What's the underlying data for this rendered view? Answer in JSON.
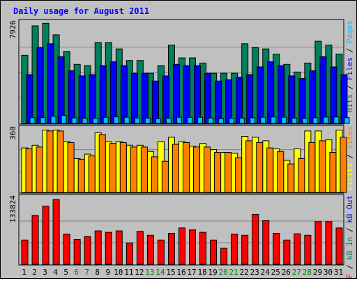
{
  "chart_data": {
    "type": "bar",
    "title": "Daily usage for August 2011",
    "categories": [
      "1",
      "2",
      "3",
      "4",
      "5",
      "6",
      "7",
      "8",
      "9",
      "10",
      "11",
      "12",
      "13",
      "14",
      "15",
      "16",
      "17",
      "18",
      "19",
      "20",
      "21",
      "22",
      "23",
      "24",
      "25",
      "26",
      "27",
      "28",
      "29",
      "30",
      "31"
    ],
    "weekend_days": [
      "6",
      "7",
      "13",
      "14",
      "20",
      "21",
      "27",
      "28"
    ],
    "colors": {
      "hits": "#00805c",
      "files": "#0000ff",
      "pages": "#00c0ff",
      "visits": "#ffff00",
      "sites": "#ff8000",
      "kbytes": "#ff0000",
      "title": "#0000ff",
      "weekday_label": "#000000",
      "weekend_label": "#008000",
      "grid": "#808080",
      "panel": "#c0c0c0"
    },
    "panels": [
      {
        "id": "hits-files-pages",
        "ymax_label": "7926",
        "ymax": 7926,
        "legend": [
          {
            "text": "Hits",
            "color": "#00805c"
          },
          {
            "text": " / ",
            "color": "#000000"
          },
          {
            "text": "Files",
            "color": "#0000ff"
          },
          {
            "text": " / ",
            "color": "#000000"
          },
          {
            "text": "Pages",
            "color": "#00c0ff"
          }
        ],
        "series": [
          {
            "name": "Hits",
            "color": "#00805c",
            "values": [
              5300,
              7600,
              7800,
              6900,
              5600,
              4600,
              4500,
              6300,
              6300,
              5800,
              4900,
              4900,
              3900,
              4500,
              6100,
              5100,
              5100,
              4700,
              3900,
              3900,
              3900,
              6200,
              5900,
              5800,
              5400,
              4600,
              4000,
              4700,
              6400,
              6100,
              5400
            ]
          },
          {
            "name": "Files",
            "color": "#0000ff",
            "values": [
              3800,
              5900,
              6200,
              5200,
              4100,
              3700,
              3800,
              4500,
              4800,
              4500,
              3900,
              3900,
              3300,
              3700,
              4600,
              4500,
              4500,
              3900,
              3300,
              3400,
              3600,
              3800,
              4400,
              4800,
              4500,
              3700,
              3500,
              4100,
              5200,
              4400,
              3800
            ]
          },
          {
            "name": "Pages",
            "color": "#00c0ff",
            "values": [
              450,
              450,
              550,
              620,
              430,
              400,
              400,
              470,
              510,
              480,
              420,
              420,
              370,
              400,
              480,
              470,
              470,
              420,
              370,
              390,
              410,
              440,
              480,
              500,
              480,
              410,
              390,
              440,
              490,
              500,
              450
            ]
          }
        ]
      },
      {
        "id": "visits-sites",
        "ymax_label": "360",
        "ymax": 360,
        "legend": [
          {
            "text": "Visits",
            "color": "#ffff00"
          },
          {
            "text": " / ",
            "color": "#000000"
          },
          {
            "text": "Sites",
            "color": "#ff8000"
          }
        ],
        "series": [
          {
            "name": "Visits",
            "color": "#ffff00",
            "values": [
              250,
              265,
              350,
              350,
              285,
              190,
              215,
              335,
              285,
              285,
              265,
              265,
              230,
              285,
              310,
              285,
              260,
              275,
              240,
              225,
              220,
              315,
              310,
              290,
              245,
              180,
              245,
              345,
              345,
              295,
              350
            ]
          },
          {
            "name": "Sites",
            "color": "#ff8000",
            "values": [
              245,
              255,
              345,
              345,
              280,
              185,
              205,
              325,
              275,
              280,
              255,
              255,
              200,
              175,
              270,
              280,
              255,
              255,
              225,
              225,
              195,
              290,
              280,
              250,
              230,
              160,
              190,
              280,
              290,
              225,
              310
            ]
          }
        ]
      },
      {
        "id": "kbytes",
        "ymax_label": "133824",
        "ymax": 133824,
        "legend": [
          {
            "text": "kB F",
            "color": "#ff0000"
          },
          {
            "text": " / ",
            "color": "#000000"
          },
          {
            "text": "kB In",
            "color": "#00805c"
          },
          {
            "text": " / ",
            "color": "#000000"
          },
          {
            "text": "kB Out",
            "color": "#0000ff"
          }
        ],
        "series": [
          {
            "name": "kB F",
            "color": "#ff0000",
            "values": [
              50000,
              101000,
              120000,
              133800,
              62000,
              51000,
              57000,
              69000,
              66000,
              69000,
              44000,
              68000,
              60000,
              50000,
              64000,
              75000,
              71000,
              66000,
              50000,
              33000,
              62000,
              60000,
              103000,
              90000,
              64000,
              50000,
              63000,
              60000,
              88000,
              88000,
              75000
            ]
          }
        ]
      }
    ]
  }
}
